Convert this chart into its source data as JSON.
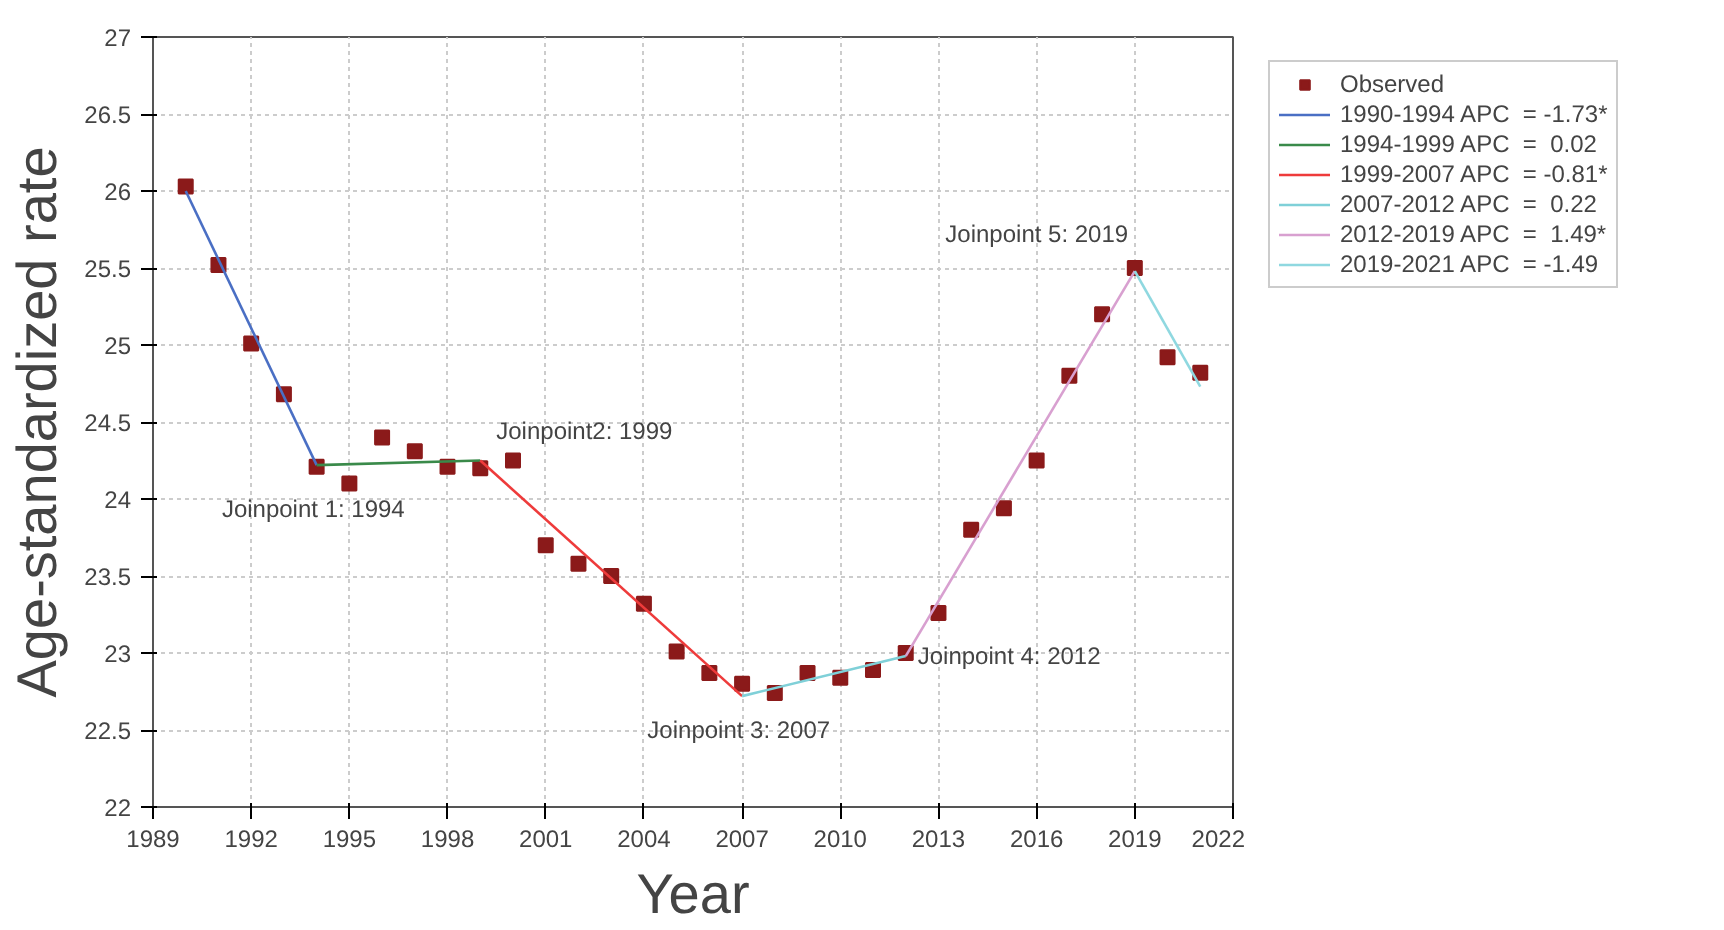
{
  "chart_data": {
    "type": "scatter",
    "xlabel": "Year",
    "ylabel": "Age-standardized rate",
    "xlim": [
      1989,
      2022
    ],
    "xticks": [
      1989,
      1992,
      1995,
      1998,
      2001,
      2004,
      2007,
      2010,
      2013,
      2016,
      2019,
      2022
    ],
    "ylim": [
      22,
      27
    ],
    "yticks": [
      22,
      22.5,
      23,
      23.5,
      24,
      24.5,
      25,
      25.5,
      26,
      26.5,
      27
    ],
    "grid": true,
    "legend": "right",
    "x": [
      1990,
      1991,
      1992,
      1993,
      1994,
      1995,
      1996,
      1997,
      1998,
      1999,
      2000,
      2001,
      2002,
      2003,
      2004,
      2005,
      2006,
      2007,
      2008,
      2009,
      2010,
      2011,
      2012,
      2013,
      2014,
      2015,
      2016,
      2017,
      2018,
      2019,
      2020,
      2021
    ],
    "series": [
      {
        "name": "Observed",
        "marker": "square",
        "color": "#8b1a1a",
        "values": [
          26.03,
          25.52,
          25.01,
          24.68,
          24.21,
          24.1,
          24.4,
          24.31,
          24.21,
          24.2,
          24.25,
          23.7,
          23.58,
          23.5,
          23.32,
          23.01,
          22.87,
          22.8,
          22.74,
          22.87,
          22.84,
          22.89,
          23.0,
          23.26,
          23.8,
          23.94,
          24.25,
          24.8,
          25.2,
          25.5,
          24.92,
          24.82
        ]
      },
      {
        "name": "1990-1994 APC  = -1.73*",
        "type": "line",
        "color": "#4a6fc4",
        "x": [
          1990,
          1994
        ],
        "values": [
          26.0,
          24.22
        ]
      },
      {
        "name": "1994-1999 APC  =  0.02",
        "type": "line",
        "color": "#3a8a4a",
        "x": [
          1994,
          1999
        ],
        "values": [
          24.22,
          24.25
        ]
      },
      {
        "name": "1999-2007 APC  = -0.81*",
        "type": "line",
        "color": "#ee3b3b",
        "x": [
          1999,
          2007
        ],
        "values": [
          24.25,
          22.72
        ]
      },
      {
        "name": "2007-2012 APC  =  0.22",
        "type": "line",
        "color": "#7fd0d8",
        "x": [
          2007,
          2012
        ],
        "values": [
          22.72,
          22.98
        ]
      },
      {
        "name": "2012-2019 APC  =  1.49*",
        "type": "line",
        "color": "#d8a0d0",
        "x": [
          2012,
          2019
        ],
        "values": [
          22.98,
          25.48
        ]
      },
      {
        "name": "2019-2021 APC  = -1.49",
        "type": "line",
        "color": "#8fd8e0",
        "x": [
          2019,
          2021
        ],
        "values": [
          25.48,
          24.73
        ]
      }
    ],
    "annotations": [
      {
        "text": "Joinpoint 1:  1994",
        "x": 1994,
        "y": 24.21
      },
      {
        "text": "Joinpoint2:  1999",
        "x": 1999,
        "y": 24.25
      },
      {
        "text": "Joinpoint 3:  2007",
        "x": 2007,
        "y": 22.72
      },
      {
        "text": "Joinpoint 4:  2012",
        "x": 2012,
        "y": 22.98
      },
      {
        "text": "Joinpoint 5:  2019",
        "x": 2019,
        "y": 25.5
      }
    ]
  }
}
